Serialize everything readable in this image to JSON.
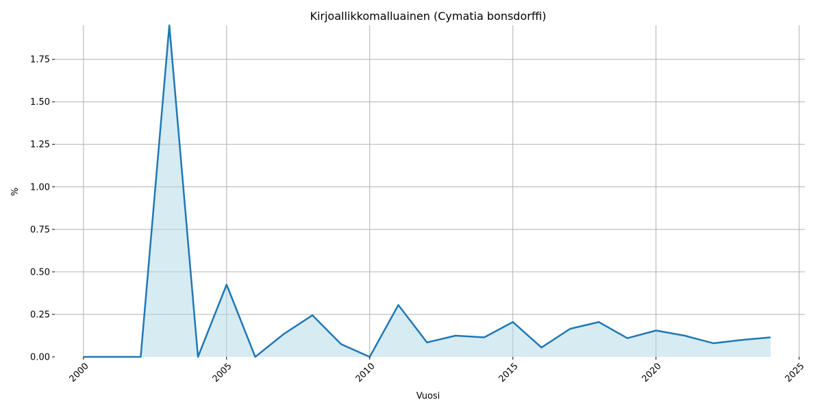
{
  "chart_data": {
    "type": "area",
    "title": "Kirjoallikkomalluainen (Cymatia bonsdorffi)",
    "xlabel": "Vuosi",
    "ylabel": "%",
    "x": [
      2000,
      2001,
      2002,
      2003,
      2004,
      2005,
      2006,
      2007,
      2008,
      2009,
      2010,
      2011,
      2012,
      2013,
      2014,
      2015,
      2016,
      2017,
      2018,
      2019,
      2020,
      2021,
      2022,
      2023,
      2024
    ],
    "values": [
      0,
      0,
      0,
      1.95,
      0,
      0.425,
      0,
      0.135,
      0.245,
      0.075,
      0,
      0.305,
      0.085,
      0.125,
      0.115,
      0.205,
      0.055,
      0.165,
      0.205,
      0.11,
      0.155,
      0.125,
      0.08,
      0.1,
      0.115
    ],
    "xlim": [
      1999,
      2025.2
    ],
    "ylim": [
      0,
      1.95
    ],
    "xticks": [
      2000,
      2005,
      2010,
      2015,
      2020,
      2025
    ],
    "xtick_labels": [
      "2000",
      "2005",
      "2010",
      "2015",
      "2020",
      "2025"
    ],
    "yticks": [
      0,
      0.25,
      0.5,
      0.75,
      1.0,
      1.25,
      1.5,
      1.75
    ],
    "ytick_labels": [
      "0.00",
      "0.25",
      "0.50",
      "0.75",
      "1.00",
      "1.25",
      "1.50",
      "1.75"
    ],
    "grid": true,
    "line_color": "#1f77b4",
    "fill_color": "#add8e6"
  }
}
